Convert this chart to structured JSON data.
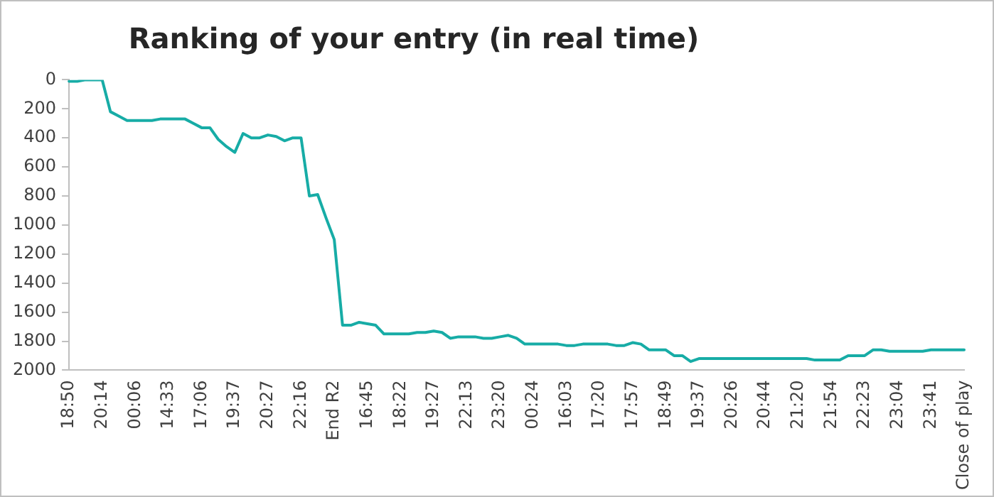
{
  "chart_data": {
    "type": "line",
    "title": "Ranking of your entry (in real time)",
    "categories": [
      "18:50",
      null,
      null,
      null,
      "20:14",
      null,
      null,
      null,
      "00:06",
      null,
      null,
      null,
      "14:33",
      null,
      null,
      null,
      "17:06",
      null,
      null,
      null,
      "19:37",
      null,
      null,
      null,
      "20:27",
      null,
      null,
      null,
      "22:16",
      null,
      null,
      null,
      "End R2",
      null,
      null,
      null,
      "16:45",
      null,
      null,
      null,
      "18:22",
      null,
      null,
      null,
      "19:27",
      null,
      null,
      null,
      "22:13",
      null,
      null,
      null,
      "23:20",
      null,
      null,
      null,
      "00:24",
      null,
      null,
      null,
      "16:03",
      null,
      null,
      null,
      "17:20",
      null,
      null,
      null,
      "17:57",
      null,
      null,
      null,
      "18:49",
      null,
      null,
      null,
      "19:37",
      null,
      null,
      null,
      "20:26",
      null,
      null,
      null,
      "20:44",
      null,
      null,
      null,
      "21:20",
      null,
      null,
      null,
      "21:54",
      null,
      null,
      null,
      "22:23",
      null,
      null,
      null,
      "23:04",
      null,
      null,
      null,
      "23:41",
      null,
      null,
      null,
      "Close of play"
    ],
    "series": [
      {
        "color": "#17aca6",
        "values": [
          10,
          10,
          0,
          0,
          0,
          220,
          250,
          280,
          280,
          280,
          280,
          270,
          270,
          270,
          270,
          300,
          330,
          330,
          410,
          460,
          500,
          370,
          400,
          400,
          380,
          390,
          420,
          400,
          400,
          800,
          790,
          950,
          1100,
          1690,
          1690,
          1670,
          1680,
          1690,
          1750,
          1750,
          1750,
          1750,
          1740,
          1740,
          1730,
          1740,
          1780,
          1770,
          1770,
          1770,
          1780,
          1780,
          1770,
          1760,
          1780,
          1820,
          1820,
          1820,
          1820,
          1820,
          1830,
          1830,
          1820,
          1820,
          1820,
          1820,
          1830,
          1830,
          1810,
          1820,
          1860,
          1860,
          1860,
          1900,
          1900,
          1940,
          1920,
          1920,
          1920,
          1920,
          1920,
          1920,
          1920,
          1920,
          1920,
          1920,
          1920,
          1920,
          1920,
          1920,
          1930,
          1930,
          1930,
          1930,
          1900,
          1900,
          1900,
          1860,
          1860,
          1870,
          1870,
          1870,
          1870,
          1870,
          1860,
          1860,
          1860,
          1860,
          1860
        ]
      }
    ],
    "ylim": [
      2000,
      0
    ],
    "yticks": [
      0,
      200,
      400,
      600,
      800,
      1000,
      1200,
      1400,
      1600,
      1800,
      2000
    ],
    "grid": false,
    "legend": false,
    "marker": "none",
    "line_style": "solid"
  }
}
